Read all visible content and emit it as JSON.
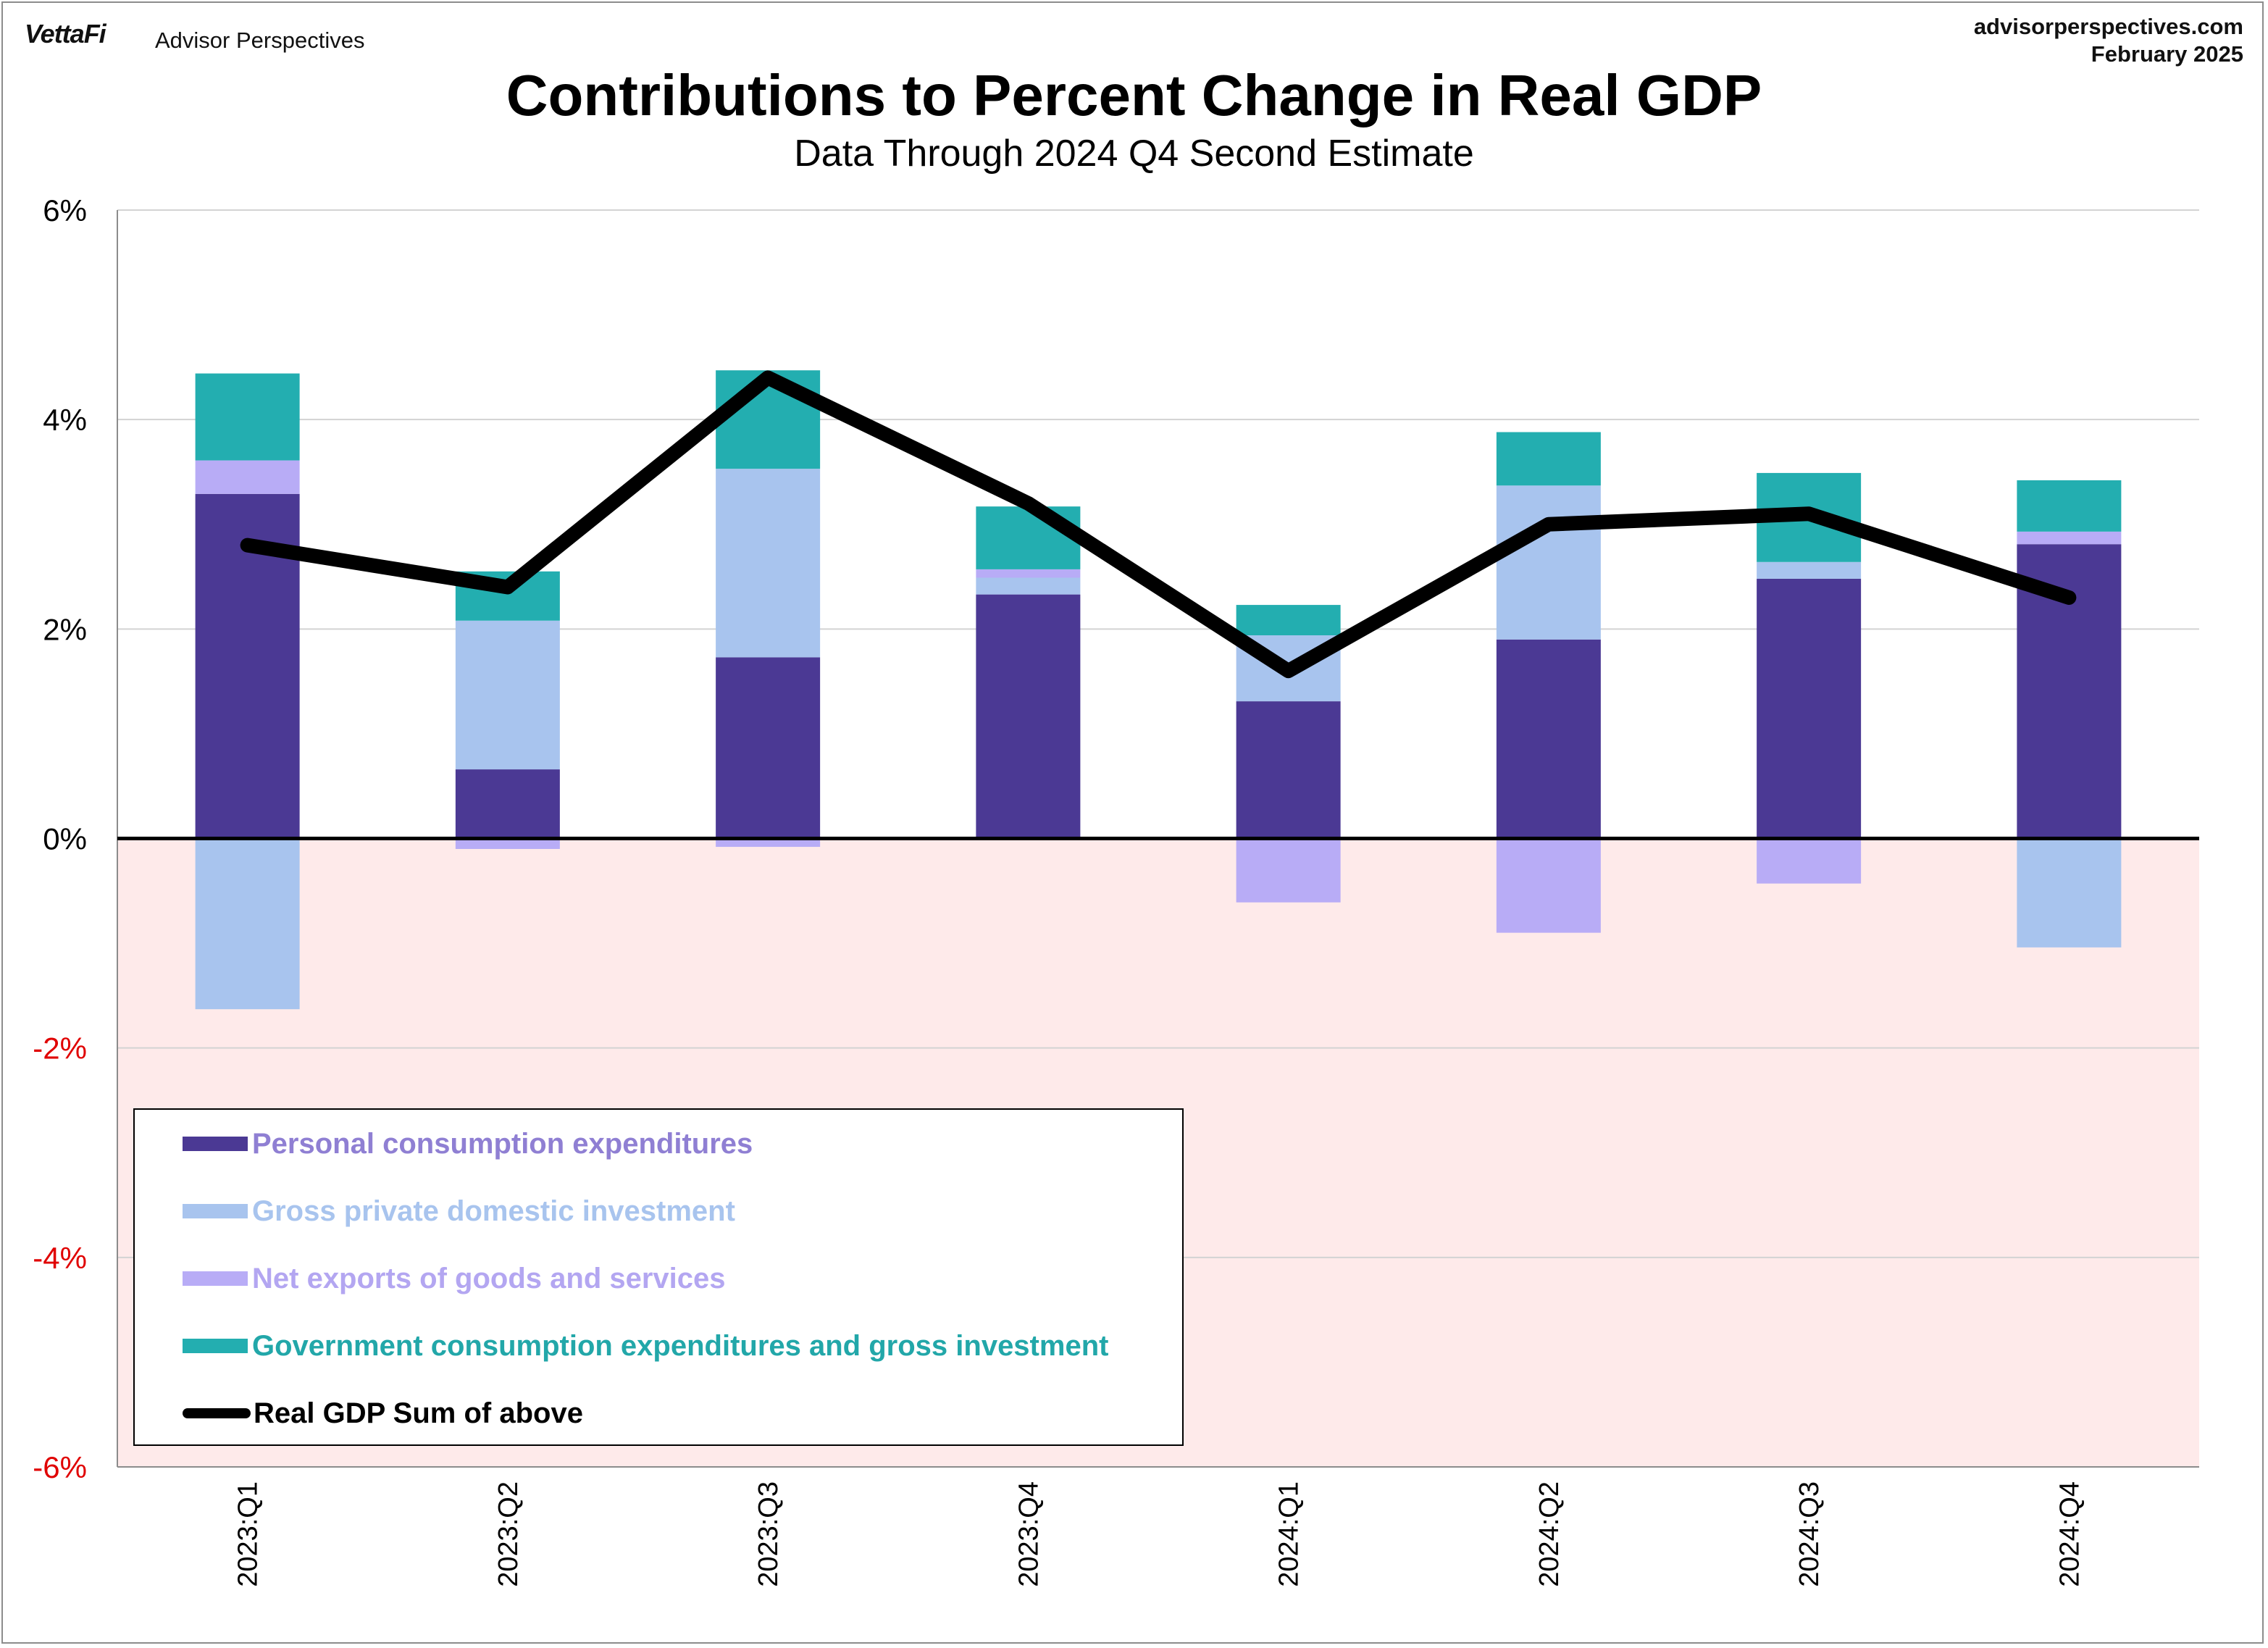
{
  "header": {
    "brand": "VettaFi",
    "brand_sub": "Advisor Perspectives",
    "site": "advisorperspectives.com",
    "date": "February 2025"
  },
  "chart_data": {
    "type": "bar",
    "stacked": true,
    "title": "Contributions to Percent Change in Real GDP",
    "subtitle": "Data Through 2024 Q4 Second Estimate",
    "xlabel": "",
    "ylabel": "",
    "ylim": [
      -6,
      6
    ],
    "yticks": [
      6,
      4,
      2,
      0,
      -2,
      -4,
      -6
    ],
    "ytick_labels": [
      "6%",
      "4%",
      "2%",
      "0%",
      "-2%",
      "-4%",
      "-6%"
    ],
    "grid": true,
    "negative_region_shaded": true,
    "legend_position": "bottom-left",
    "categories": [
      "2023:Q1",
      "2023:Q2",
      "2023:Q3",
      "2023:Q4",
      "2024:Q1",
      "2024:Q2",
      "2024:Q3",
      "2024:Q4"
    ],
    "series": [
      {
        "name": "Personal consumption expenditures",
        "color": "#4b3994",
        "label_color": "#8f7fd3",
        "values": [
          3.29,
          0.66,
          1.73,
          2.33,
          1.31,
          1.9,
          2.48,
          2.81
        ]
      },
      {
        "name": "Gross private domestic investment",
        "color": "#a8c4ee",
        "label_color": "#a8c4ee",
        "values": [
          -1.63,
          1.42,
          1.8,
          0.16,
          0.63,
          1.47,
          0.16,
          -1.04
        ]
      },
      {
        "name": "Net exports of goods and services",
        "color": "#b8acf6",
        "label_color": "#b3a6f1",
        "values": [
          0.32,
          -0.1,
          -0.08,
          0.08,
          -0.61,
          -0.9,
          -0.43,
          0.12
        ]
      },
      {
        "name": "Government consumption expenditures and gross investment",
        "color": "#23aeb0",
        "label_color": "#22a7a9",
        "values": [
          0.83,
          0.47,
          0.94,
          0.6,
          0.29,
          0.51,
          0.85,
          0.49
        ]
      }
    ],
    "line": {
      "name": "Real GDP Sum of above",
      "color": "#000000",
      "values": [
        2.8,
        2.4,
        4.4,
        3.2,
        1.6,
        3.0,
        3.1,
        2.3
      ]
    }
  }
}
